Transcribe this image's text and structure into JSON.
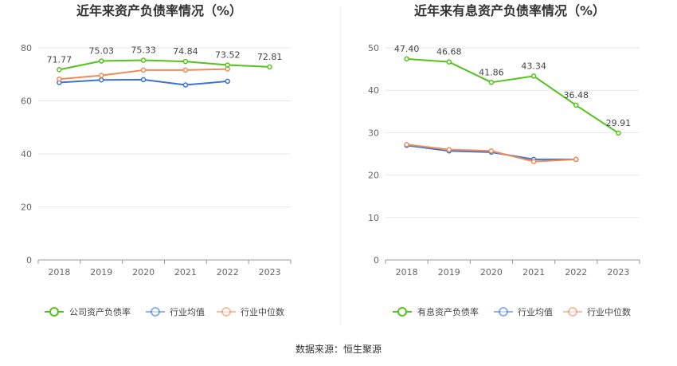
{
  "source_label": "数据来源：恒生聚源",
  "chart_data": [
    {
      "type": "line",
      "title": "近年来资产负债率情况（%）",
      "categories": [
        "2018",
        "2019",
        "2020",
        "2021",
        "2022",
        "2023"
      ],
      "ylim": [
        0,
        80
      ],
      "yticks": [
        0,
        20,
        40,
        60,
        80
      ],
      "grid": true,
      "legend_position": "bottom",
      "series": [
        {
          "name": "公司资产负债率",
          "color": "#52c41a",
          "values": [
            71.77,
            75.03,
            75.33,
            74.84,
            73.52,
            72.81
          ],
          "labels": [
            "71.77",
            "75.03",
            "75.33",
            "74.84",
            "73.52",
            "72.81"
          ]
        },
        {
          "name": "行业均值",
          "color": "#3a75d3",
          "values": [
            66.9,
            67.9,
            68.0,
            66.0,
            67.4,
            null
          ]
        },
        {
          "name": "行业中位数",
          "color": "#ef8a5a",
          "values": [
            68.2,
            69.6,
            71.6,
            71.6,
            72.0,
            null
          ]
        }
      ]
    },
    {
      "type": "line",
      "title": "近年来有息资产负债率情况（%）",
      "categories": [
        "2018",
        "2019",
        "2020",
        "2021",
        "2022",
        "2023"
      ],
      "ylim": [
        0,
        50
      ],
      "yticks": [
        0,
        10,
        20,
        30,
        40,
        50
      ],
      "grid": true,
      "legend_position": "bottom",
      "series": [
        {
          "name": "有息资产负债率",
          "color": "#52c41a",
          "values": [
            47.4,
            46.68,
            41.86,
            43.34,
            36.48,
            29.91
          ],
          "labels": [
            "47.40",
            "46.68",
            "41.86",
            "43.34",
            "36.48",
            "29.91"
          ]
        },
        {
          "name": "行业均值",
          "color": "#3a75d3",
          "values": [
            27.0,
            25.7,
            25.4,
            23.7,
            23.7,
            null
          ]
        },
        {
          "name": "行业中位数",
          "color": "#ef8a5a",
          "values": [
            27.2,
            26.0,
            25.7,
            23.2,
            23.7,
            null
          ]
        }
      ]
    }
  ]
}
